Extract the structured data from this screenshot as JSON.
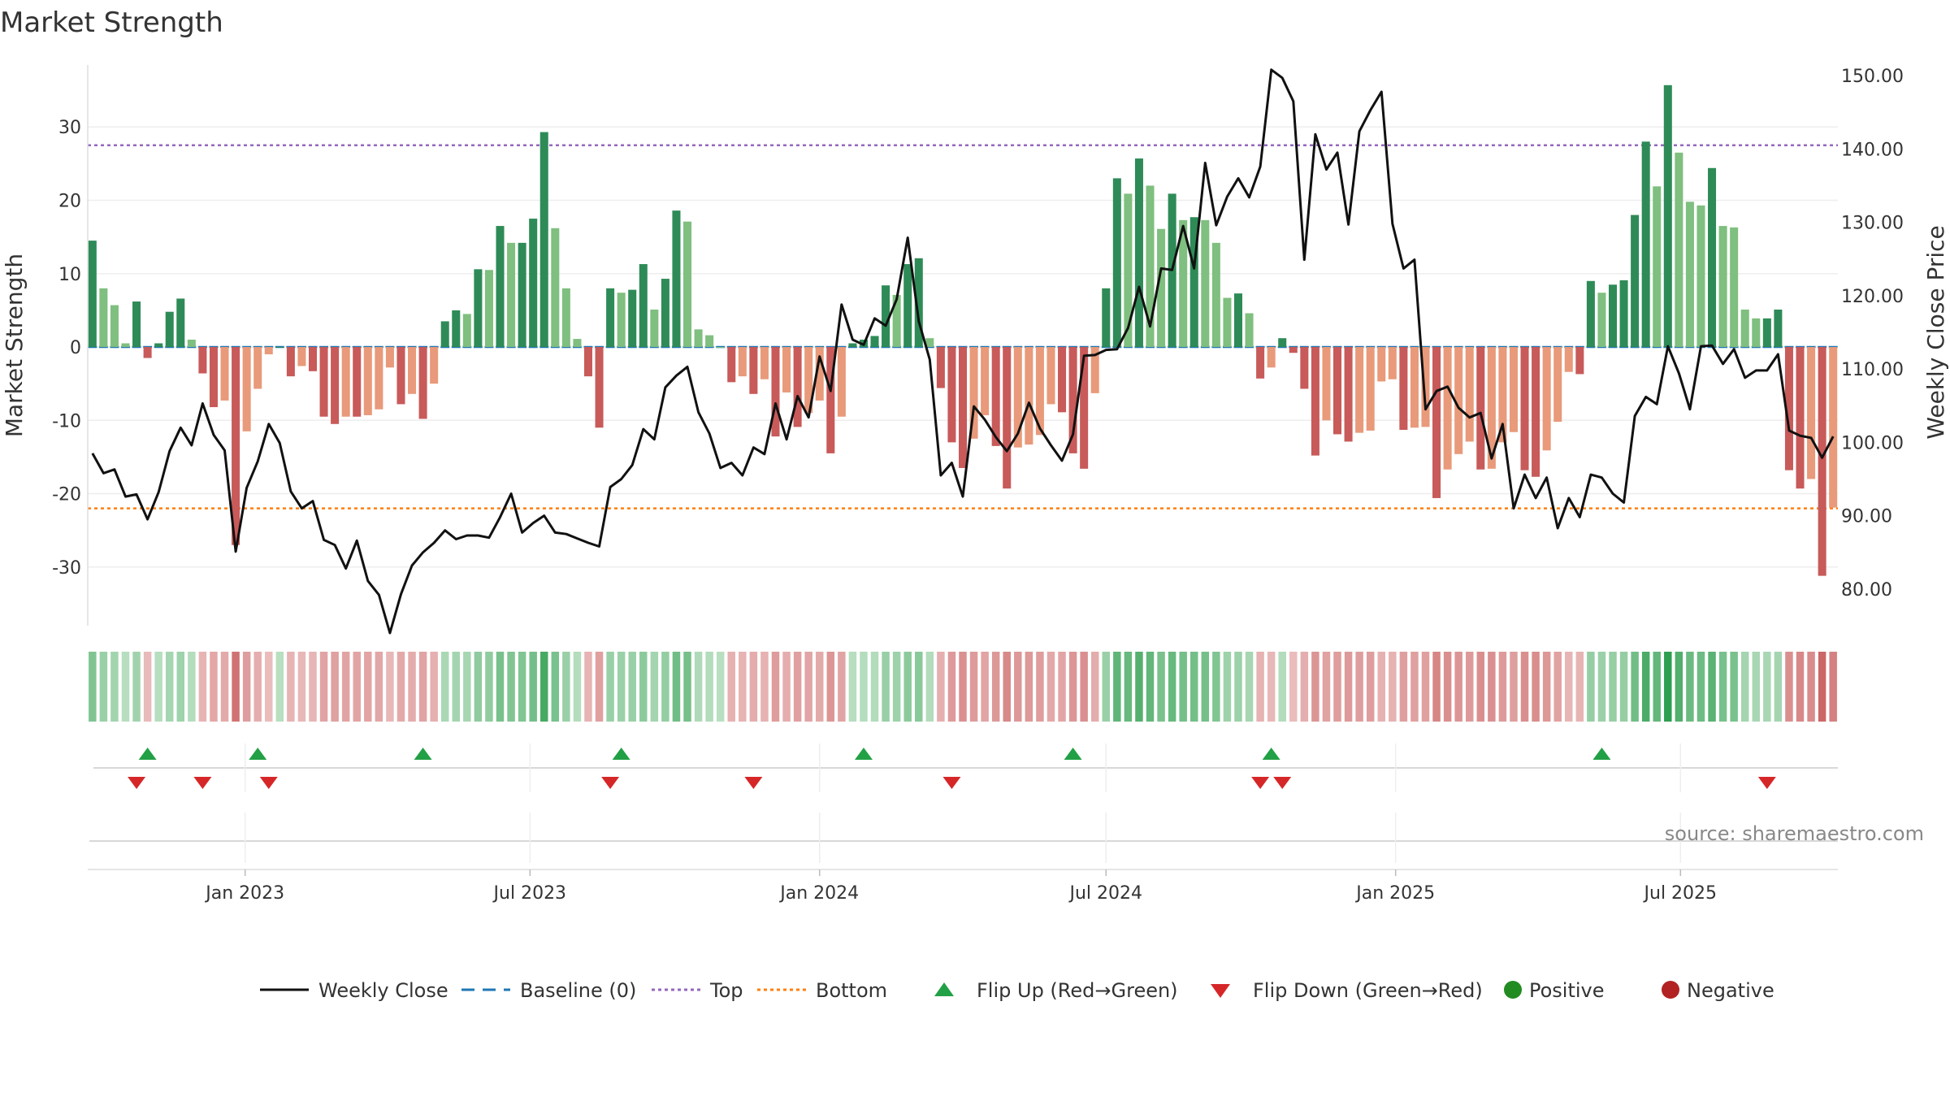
{
  "chart_data": {
    "type": "bar",
    "title": "Market Strength",
    "ylabel": "Market Strength",
    "y2label": "Weekly Close Price",
    "ylim": [
      -38,
      39
    ],
    "y2lim": [
      75,
      152
    ],
    "yticks": [
      -30,
      -20,
      -10,
      0,
      10,
      20,
      30
    ],
    "y2ticks": [
      "80.00",
      "90.00",
      "100.00",
      "110.00",
      "120.00",
      "130.00",
      "140.00",
      "150.00"
    ],
    "xticks": [
      {
        "label": "Jan 2023",
        "date": "2023-01-01"
      },
      {
        "label": "Jul 2023",
        "date": "2023-07-01"
      },
      {
        "label": "Jan 2024",
        "date": "2024-01-01"
      },
      {
        "label": "Jul 2024",
        "date": "2024-07-01"
      },
      {
        "label": "Jan 2025",
        "date": "2025-01-01"
      },
      {
        "label": "Jul 2025",
        "date": "2025-07-01"
      }
    ],
    "start_date": "2022-09-26",
    "top_line": 27.5,
    "bottom_line": -22,
    "strength": [
      14.5,
      8,
      5.7,
      0.5,
      6.2,
      -1.5,
      0.5,
      4.8,
      6.6,
      1,
      -3.6,
      -8.2,
      -7.3,
      -27,
      -11.5,
      -5.7,
      -1,
      0,
      -4,
      -2.6,
      -3.3,
      -9.5,
      -10.5,
      -9.5,
      -9.5,
      -9.3,
      -8.5,
      -2.8,
      -7.8,
      -6.4,
      -9.8,
      -5,
      3.5,
      5,
      4.5,
      10.6,
      10.5,
      16.5,
      14.2,
      14.2,
      17.5,
      29.3,
      16.2,
      8,
      1.1,
      -4,
      -11,
      8,
      7.4,
      7.8,
      11.3,
      5.1,
      9.3,
      18.6,
      17.1,
      2.4,
      1.6,
      0,
      -4.8,
      -4,
      -6.4,
      -4.4,
      -12.2,
      -6.2,
      -10.9,
      -9,
      -7.3,
      -14.5,
      -9.5,
      0.5,
      1,
      1.5,
      8.4,
      7.1,
      11.3,
      12.1,
      1.2,
      -5.6,
      -13,
      -16.5,
      -12.5,
      -9.3,
      -13.5,
      -19.3,
      -13.7,
      -13.3,
      -12,
      -7.8,
      -8.9,
      -14.5,
      -16.6,
      -6.3,
      8,
      23,
      20.9,
      25.7,
      22,
      16.1,
      20.9,
      17.3,
      17.7,
      17.3,
      14.2,
      6.7,
      7.3,
      4.6,
      -4.3,
      -2.8,
      1.2,
      -0.8,
      -5.7,
      -14.8,
      -10,
      -11.9,
      -12.9,
      -11.7,
      -11.4,
      -4.7,
      -4.4,
      -11.3,
      -11,
      -10.9,
      -20.6,
      -16.7,
      -14.6,
      -12.9,
      -16.7,
      -16.6,
      -13,
      -11.6,
      -16.8,
      -17.7,
      -14.1,
      -10.2,
      -3.4,
      -3.7,
      9,
      7.4,
      8.5,
      9.1,
      18,
      28,
      21.9,
      35.7,
      26.5,
      19.8,
      19.3,
      24.4,
      16.5,
      16.3,
      5.1,
      3.9,
      3.9,
      5.1,
      -16.8,
      -19.3,
      -18,
      -31.2,
      -21.9
    ],
    "close": [
      98.5,
      95.8,
      96.3,
      92.6,
      92.9,
      89.5,
      93.2,
      98.8,
      102,
      99.6,
      105.3,
      101,
      98.9,
      85.1,
      93.8,
      97.4,
      102.5,
      99.9,
      93.3,
      91,
      92,
      86.7,
      86,
      82.8,
      86.6,
      81.1,
      79.2,
      74,
      79.3,
      83.2,
      85,
      86.3,
      88,
      86.8,
      87.3,
      87.3,
      87,
      89.8,
      93,
      87.7,
      89,
      90,
      87.7,
      87.5,
      86.9,
      86.3,
      85.8,
      93.9,
      95,
      96.9,
      101.8,
      100.4,
      107.5,
      109.1,
      110.3,
      104.1,
      101.2,
      96.5,
      97.2,
      95.5,
      99.3,
      98.4,
      105.3,
      100.4,
      106.3,
      103.4,
      111.7,
      107,
      118.8,
      114,
      113.3,
      116.9,
      115.9,
      119.5,
      127.9,
      116.5,
      111.3,
      95.5,
      97.2,
      92.6,
      104.9,
      103.1,
      100.7,
      98.8,
      101.2,
      105.4,
      101.9,
      99.6,
      97.5,
      101.1,
      111.8,
      111.9,
      112.6,
      112.7,
      115.6,
      121.2,
      115.8,
      123.7,
      123.5,
      129.5,
      123.7,
      138.1,
      129.6,
      133.5,
      136,
      133.4,
      137.6,
      150.8,
      149.7,
      146.5,
      124.9,
      142,
      137.2,
      139.5,
      129.7,
      142.4,
      145.3,
      147.8,
      129.8,
      123.7,
      124.9,
      104.5,
      107,
      107.6,
      104.7,
      103.4,
      104,
      97.8,
      102.5,
      91,
      95.6,
      92.4,
      95.2,
      88.3,
      92.4,
      89.8,
      95.6,
      95.2,
      93,
      91.8,
      103.6,
      106.2,
      105.2,
      113.1,
      109.4,
      104.5,
      113.1,
      113.2,
      110.7,
      112.7,
      108.8,
      109.8,
      109.8,
      112,
      101.6,
      100.9,
      100.6,
      97.9,
      100.8
    ],
    "flips_up": [
      "2022-10-31",
      "2023-01-09",
      "2023-04-24",
      "2023-08-28",
      "2024-01-29",
      "2024-06-10",
      "2024-10-14",
      "2025-05-12"
    ],
    "flips_down": [
      "2022-10-24",
      "2022-12-05",
      "2023-01-16",
      "2023-08-21",
      "2023-11-20",
      "2024-03-25",
      "2024-10-07",
      "2024-10-21",
      "2025-08-25"
    ],
    "colors": {
      "pos_strong": "#2e8b57",
      "pos_light": "#7fbf7f",
      "neg_strong": "#c85a5a",
      "neg_light": "#e89a7a",
      "close_line": "#111111",
      "baseline": "#1f77b4",
      "top": "#9467bd",
      "bottom": "#ff7f0e",
      "flip_up": "#22a045",
      "flip_down": "#d62728",
      "positive": "#228b22",
      "negative": "#b22222"
    },
    "legend": [
      {
        "label": "Weekly Close",
        "kind": "line",
        "color": "#111111"
      },
      {
        "label": "Baseline (0)",
        "kind": "dash",
        "color": "#1f77b4"
      },
      {
        "label": "Top",
        "kind": "dot",
        "color": "#9467bd"
      },
      {
        "label": "Bottom",
        "kind": "dot",
        "color": "#ff7f0e"
      },
      {
        "label": "Flip Up (Red→Green)",
        "kind": "tri-up",
        "color": "#22a045"
      },
      {
        "label": "Flip Down (Green→Red)",
        "kind": "tri-down",
        "color": "#d62728"
      },
      {
        "label": "Positive",
        "kind": "circle",
        "color": "#228b22"
      },
      {
        "label": "Negative",
        "kind": "circle",
        "color": "#b22222"
      }
    ],
    "legend_position": "bottom",
    "source": "source: sharemaestro.com"
  }
}
